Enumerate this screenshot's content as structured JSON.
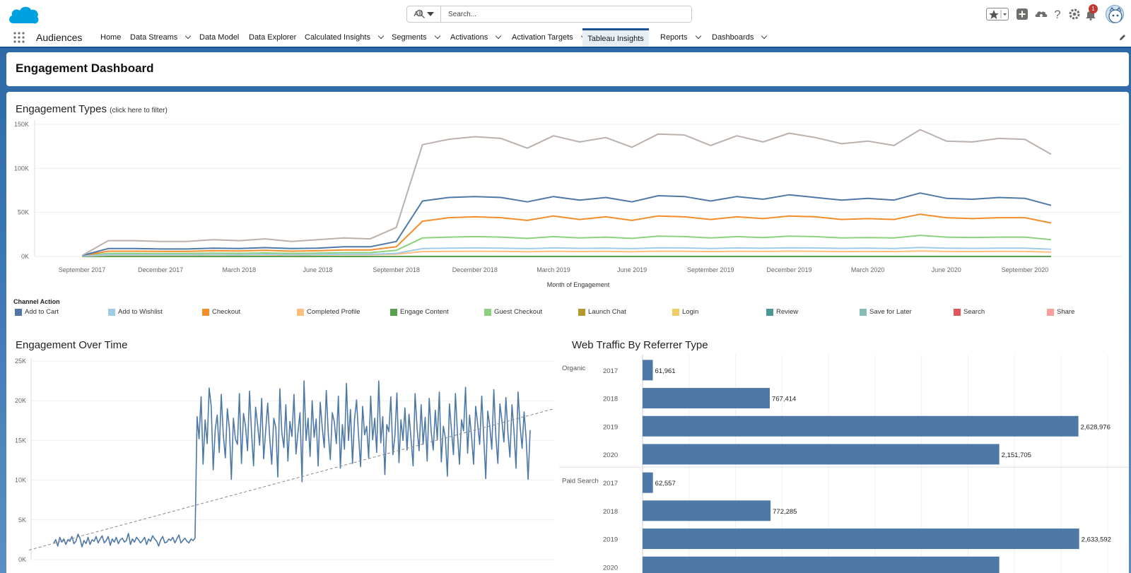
{
  "global_header": {
    "search_scope": "All",
    "search_placeholder": "Search...",
    "notification_count": "1"
  },
  "nav": {
    "app_name": "Audiences",
    "items": [
      {
        "label": "Home",
        "dropdown": false,
        "active": false
      },
      {
        "label": "Data Streams",
        "dropdown": true,
        "active": false
      },
      {
        "label": "Data Model",
        "dropdown": false,
        "active": false
      },
      {
        "label": "Data Explorer",
        "dropdown": false,
        "active": false
      },
      {
        "label": "Calculated Insights",
        "dropdown": true,
        "active": false
      },
      {
        "label": "Segments",
        "dropdown": true,
        "active": false
      },
      {
        "label": "Activations",
        "dropdown": true,
        "active": false
      },
      {
        "label": "Activation Targets",
        "dropdown": true,
        "active": false
      },
      {
        "label": "Tableau Insights",
        "dropdown": false,
        "active": true
      },
      {
        "label": "Reports",
        "dropdown": true,
        "active": false
      },
      {
        "label": "Dashboards",
        "dropdown": true,
        "active": false
      }
    ]
  },
  "page": {
    "title": "Engagement Dashboard"
  },
  "engagement_types": {
    "title": "Engagement Types",
    "hint": "(click here to filter)",
    "legend_title": "Channel Action"
  },
  "engagement_over_time": {
    "title": "Engagement Over Time"
  },
  "web_traffic": {
    "title": "Web Traffic By Referrer Type"
  },
  "colors": {
    "accent": "#1b5297",
    "bar": "#4e79a7",
    "header_bg": "#2f6aa8"
  },
  "chart_data": [
    {
      "type": "line",
      "title": "Engagement Types",
      "xlabel": "Month of Engagement",
      "ylabel": "",
      "ylim": [
        0,
        150000
      ],
      "y_ticks": [
        "0K",
        "50K",
        "100K",
        "150K"
      ],
      "x_ticks": [
        "September 2017",
        "December 2017",
        "March 2018",
        "June 2018",
        "September 2018",
        "December 2018",
        "March 2019",
        "June 2019",
        "September 2019",
        "December 2019",
        "March 2020",
        "June 2020",
        "September 2020"
      ],
      "x": [
        "2017-09",
        "2017-10",
        "2017-11",
        "2017-12",
        "2018-01",
        "2018-02",
        "2018-03",
        "2018-04",
        "2018-05",
        "2018-06",
        "2018-07",
        "2018-08",
        "2018-09",
        "2018-10",
        "2018-11",
        "2018-12",
        "2019-01",
        "2019-02",
        "2019-03",
        "2019-04",
        "2019-05",
        "2019-06",
        "2019-07",
        "2019-08",
        "2019-09",
        "2019-10",
        "2019-11",
        "2019-12",
        "2020-01",
        "2020-02",
        "2020-03",
        "2020-04",
        "2020-05",
        "2020-06",
        "2020-07",
        "2020-08",
        "2020-09",
        "2020-10"
      ],
      "legend_title": "Channel Action",
      "legend_placement": "bottom",
      "series": [
        {
          "name": "Total",
          "legend": false,
          "color": "#bab0ac",
          "values": [
            1000,
            18000,
            18000,
            17000,
            17000,
            19000,
            18000,
            20000,
            17000,
            19000,
            21000,
            20000,
            33000,
            127000,
            133000,
            136000,
            134000,
            123000,
            137000,
            130000,
            135000,
            124000,
            139000,
            138000,
            126000,
            137000,
            130000,
            140000,
            135000,
            128000,
            131000,
            126000,
            144000,
            131000,
            130000,
            134000,
            133000,
            116000
          ]
        },
        {
          "name": "Add to Cart",
          "color": "#4e79a7",
          "values": [
            1000,
            9000,
            9000,
            8500,
            8500,
            9500,
            9000,
            10000,
            9000,
            9500,
            11000,
            11000,
            17000,
            63000,
            67000,
            68000,
            67000,
            62000,
            68000,
            64000,
            67000,
            62000,
            69000,
            68000,
            63000,
            68000,
            65000,
            70000,
            67000,
            64000,
            66000,
            64000,
            72000,
            66000,
            65000,
            67000,
            66000,
            58000
          ]
        },
        {
          "name": "Add to Wishlist",
          "color": "#a0cbe8",
          "values": [
            500,
            2000,
            2000,
            2000,
            2000,
            2200,
            2000,
            2400,
            2000,
            2200,
            2500,
            2500,
            3500,
            9000,
            9500,
            9700,
            9500,
            8900,
            9700,
            9200,
            9500,
            8900,
            9900,
            9700,
            9100,
            9700,
            9300,
            9900,
            9600,
            9200,
            9400,
            9100,
            10300,
            9400,
            9200,
            9500,
            9400,
            8300
          ]
        },
        {
          "name": "Checkout",
          "color": "#f28e2b",
          "values": [
            800,
            6000,
            6000,
            5800,
            5800,
            6500,
            6200,
            7000,
            6000,
            6500,
            7500,
            7500,
            11000,
            40000,
            44000,
            45000,
            44000,
            41000,
            46000,
            42000,
            45000,
            41000,
            46000,
            45000,
            42000,
            45000,
            43000,
            46000,
            45000,
            42000,
            43000,
            42000,
            48000,
            44000,
            43000,
            44000,
            44000,
            38000
          ]
        },
        {
          "name": "Completed Profile",
          "color": "#ffbe7d",
          "values": [
            300,
            1500,
            1500,
            1500,
            1500,
            1700,
            1600,
            1800,
            1500,
            1700,
            1900,
            1900,
            2600,
            5500,
            5800,
            5900,
            5800,
            5400,
            5900,
            5600,
            5800,
            5400,
            6000,
            5900,
            5500,
            5900,
            5700,
            6000,
            5900,
            5500,
            5700,
            5500,
            6200,
            5700,
            5600,
            5800,
            5700,
            5000
          ]
        },
        {
          "name": "Engage Content",
          "color": "#59a14f",
          "values": [
            0,
            0,
            0,
            0,
            0,
            0,
            0,
            0,
            0,
            0,
            0,
            0,
            0,
            0,
            0,
            0,
            0,
            0,
            0,
            0,
            0,
            0,
            0,
            0,
            0,
            0,
            0,
            0,
            0,
            0,
            0,
            0,
            0,
            0,
            0,
            0,
            0,
            0
          ]
        },
        {
          "name": "Guest Checkout",
          "color": "#8cd17d",
          "values": [
            500,
            3500,
            3500,
            3400,
            3400,
            3800,
            3600,
            4000,
            3500,
            3800,
            4300,
            4300,
            7000,
            21000,
            22000,
            22500,
            22000,
            20500,
            22500,
            21000,
            22000,
            20500,
            23000,
            22500,
            21000,
            22500,
            21500,
            23000,
            22500,
            21000,
            21500,
            21000,
            24000,
            22000,
            21500,
            22000,
            22000,
            19000
          ]
        },
        {
          "name": "Launch Chat",
          "color": "#b6992d",
          "values": [
            0,
            0,
            0,
            0,
            0,
            0,
            0,
            0,
            0,
            0,
            0,
            0,
            0,
            0,
            0,
            0,
            0,
            0,
            0,
            0,
            0,
            0,
            0,
            0,
            0,
            0,
            0,
            0,
            0,
            0,
            0,
            0,
            0,
            0,
            0,
            0,
            0,
            0
          ]
        },
        {
          "name": "Login",
          "color": "#f1ce63",
          "values": [
            0,
            0,
            0,
            0,
            0,
            0,
            0,
            0,
            0,
            0,
            0,
            0,
            0,
            0,
            0,
            0,
            0,
            0,
            0,
            0,
            0,
            0,
            0,
            0,
            0,
            0,
            0,
            0,
            0,
            0,
            0,
            0,
            0,
            0,
            0,
            0,
            0,
            0
          ]
        },
        {
          "name": "Review",
          "color": "#499894",
          "values": [
            0,
            0,
            0,
            0,
            0,
            0,
            0,
            0,
            0,
            0,
            0,
            0,
            0,
            0,
            0,
            0,
            0,
            0,
            0,
            0,
            0,
            0,
            0,
            0,
            0,
            0,
            0,
            0,
            0,
            0,
            0,
            0,
            0,
            0,
            0,
            0,
            0,
            0
          ]
        },
        {
          "name": "Save for Later",
          "color": "#86bcb6",
          "values": [
            0,
            0,
            0,
            0,
            0,
            0,
            0,
            0,
            0,
            0,
            0,
            0,
            0,
            0,
            0,
            0,
            0,
            0,
            0,
            0,
            0,
            0,
            0,
            0,
            0,
            0,
            0,
            0,
            0,
            0,
            0,
            0,
            0,
            0,
            0,
            0,
            0,
            0
          ]
        },
        {
          "name": "Search",
          "color": "#e15759",
          "values": [
            0,
            0,
            0,
            0,
            0,
            0,
            0,
            0,
            0,
            0,
            0,
            0,
            0,
            0,
            0,
            0,
            0,
            0,
            0,
            0,
            0,
            0,
            0,
            0,
            0,
            0,
            0,
            0,
            0,
            0,
            0,
            0,
            0,
            0,
            0,
            0,
            0,
            0
          ]
        },
        {
          "name": "Share",
          "color": "#ff9d9a",
          "values": [
            0,
            0,
            0,
            0,
            0,
            0,
            0,
            0,
            0,
            0,
            0,
            0,
            0,
            0,
            0,
            0,
            0,
            0,
            0,
            0,
            0,
            0,
            0,
            0,
            0,
            0,
            0,
            0,
            0,
            0,
            0,
            0,
            0,
            0,
            0,
            0,
            0,
            0
          ]
        }
      ]
    },
    {
      "type": "line",
      "title": "Engagement Over Time",
      "ylim": [
        0,
        25000
      ],
      "y_ticks": [
        "0K",
        "5K",
        "10K",
        "15K",
        "20K",
        "25K"
      ],
      "grid": true,
      "series": [
        {
          "color": "#4e79a7",
          "values": [
            2100,
            2500,
            1700,
            2800,
            2200,
            2600,
            1900,
            2500,
            2300,
            2900,
            2000,
            2300,
            3200,
            2700,
            1600,
            2400,
            2000,
            2800,
            1900,
            2500,
            2300,
            2900,
            2100,
            2600,
            3000,
            2100,
            2400,
            2900,
            1800,
            2600,
            2200,
            2800,
            2000,
            2500,
            2700,
            2200,
            2400,
            3300,
            1900,
            2600,
            2200,
            2800,
            2500,
            2100,
            2400,
            2800,
            1900,
            2600,
            2300,
            3000,
            2600,
            2300,
            1700,
            2500,
            2900,
            2100,
            2200,
            2600,
            2400,
            2800,
            2100,
            2600,
            3100,
            2100,
            2400,
            2700,
            2300,
            2100,
            2600,
            2400,
            2700,
            18000,
            15200,
            20500,
            12000,
            17600,
            14600,
            21600,
            19300,
            11300,
            16400,
            18200,
            13500,
            20800,
            15700,
            12800,
            19000,
            16500,
            10100,
            17800,
            15200,
            14500,
            20900,
            12100,
            18400,
            16800,
            13700,
            21200,
            15900,
            11800,
            19200,
            17000,
            14400,
            20300,
            12700,
            16300,
            19700,
            15300,
            12000,
            17800,
            16600,
            10400,
            21500,
            16000,
            14100,
            19500,
            12400,
            17400,
            15500,
            20800,
            13300,
            16100,
            18500,
            9800,
            22500,
            15000,
            17800,
            13000,
            20000,
            15400,
            17700,
            11800,
            19800,
            16700,
            14100,
            21300,
            15900,
            12600,
            18500,
            17300,
            14600,
            20600,
            11500,
            17000,
            13900,
            22200,
            15000,
            18900,
            12100,
            17600,
            20100,
            15700,
            11700,
            19300,
            15700,
            16800,
            12800,
            20600,
            15100,
            17800,
            13500,
            22500,
            14700,
            18000,
            10700,
            17000,
            16100,
            20500,
            13200,
            15600,
            21000,
            12200,
            17600,
            15000,
            19100,
            13800,
            18300,
            15200,
            11800,
            20900,
            16500,
            13700,
            19500,
            14500,
            17900,
            12400,
            20300,
            16000,
            13800,
            18800,
            15100,
            21100,
            12300,
            16800,
            15300,
            10500,
            19600,
            16400,
            13200,
            20900,
            15800,
            12000,
            17600,
            16200,
            21700,
            13400,
            18200,
            15400,
            12000,
            19300,
            17100,
            14500,
            20600,
            15400,
            10200,
            18700,
            16800,
            13900,
            21400,
            15600,
            12100,
            19600,
            17500,
            14800,
            20400,
            15900,
            12900,
            19500,
            16100,
            11500,
            21100,
            16900,
            14000,
            18600,
            15300,
            10100,
            16300
          ]
        },
        {
          "name": "Trend",
          "dashed": true,
          "color": "#888888",
          "values": [
            1200,
            19000
          ]
        }
      ]
    },
    {
      "type": "bar",
      "orientation": "horizontal",
      "title": "Web Traffic By Referrer Type",
      "groups": [
        {
          "name": "Organic",
          "rows": [
            {
              "year": "2017",
              "value": 61961,
              "label": "61,961"
            },
            {
              "year": "2018",
              "value": 767414,
              "label": "767,414"
            },
            {
              "year": "2019",
              "value": 2628976,
              "label": "2,628,976"
            },
            {
              "year": "2020",
              "value": 2151705,
              "label": "2,151,705"
            }
          ]
        },
        {
          "name": "Paid Search",
          "rows": [
            {
              "year": "2017",
              "value": 62557,
              "label": "62,557"
            },
            {
              "year": "2018",
              "value": 772285,
              "label": "772,285"
            },
            {
              "year": "2019",
              "value": 2633592,
              "label": "2,633,592"
            },
            {
              "year": "2020",
              "value": 2151705,
              "label": ""
            }
          ]
        }
      ]
    }
  ]
}
